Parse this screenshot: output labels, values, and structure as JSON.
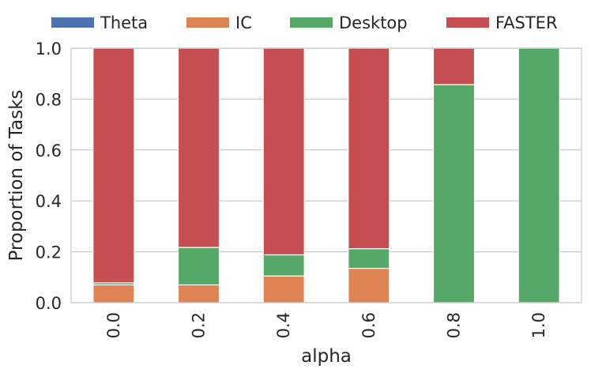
{
  "chart_data": {
    "type": "bar",
    "stacked": true,
    "title": "",
    "xlabel": "alpha",
    "ylabel": "Proportion of Tasks",
    "ylim": [
      0,
      1.0
    ],
    "yticks": [
      "0.0",
      "0.2",
      "0.4",
      "0.6",
      "0.8",
      "1.0"
    ],
    "categories": [
      "0.0",
      "0.2",
      "0.4",
      "0.6",
      "0.8",
      "1.0"
    ],
    "grid": true,
    "legend_position": "top",
    "series": [
      {
        "name": "Theta",
        "color": "#4c72b0",
        "values": [
          0.0,
          0.0,
          0.0,
          0.0,
          0.0,
          0.0
        ]
      },
      {
        "name": "IC",
        "color": "#dd8452",
        "values": [
          0.07,
          0.07,
          0.105,
          0.135,
          0.0,
          0.0
        ]
      },
      {
        "name": "Desktop",
        "color": "#55a868",
        "values": [
          0.008,
          0.147,
          0.083,
          0.077,
          0.857,
          1.0
        ]
      },
      {
        "name": "FASTER",
        "color": "#c44e52",
        "values": [
          0.922,
          0.783,
          0.812,
          0.788,
          0.143,
          0.0
        ]
      }
    ]
  }
}
